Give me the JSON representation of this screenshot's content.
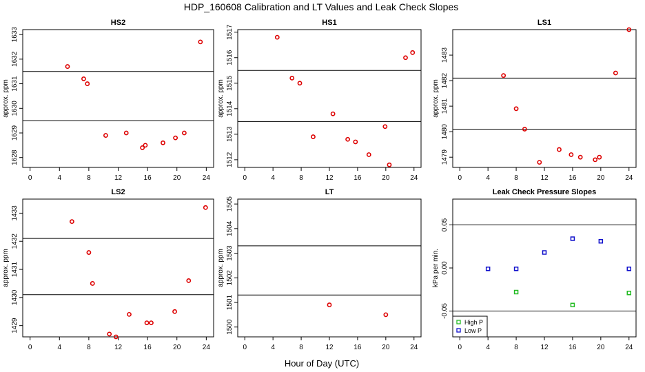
{
  "figure": {
    "title": "HDP_160608  Calibration and LT Values and Leak Check Slopes",
    "xlabel": "Hour of Day (UTC)"
  },
  "chart_data": [
    {
      "type": "scatter",
      "title": "HS2",
      "xlabel": "",
      "ylabel": "approx. ppm",
      "xlim": [
        -1,
        25
      ],
      "ylim": [
        1627.6,
        1633.2
      ],
      "xticks": [
        0,
        4,
        8,
        12,
        16,
        20,
        24
      ],
      "yticks": [
        1628,
        1629,
        1630,
        1631,
        1632,
        1633
      ],
      "hlines": [
        1631.5,
        1629.5
      ],
      "grid": false,
      "series": [
        {
          "color": "#dd0000",
          "marker": "circle",
          "x": [
            5.1,
            7.3,
            7.8,
            10.3,
            13.1,
            15.3,
            15.7,
            18.1,
            19.8,
            21.0,
            23.2
          ],
          "y": [
            1631.7,
            1631.2,
            1631.0,
            1628.9,
            1629.0,
            1628.4,
            1628.5,
            1628.6,
            1628.8,
            1629.0,
            1632.7
          ]
        }
      ]
    },
    {
      "type": "scatter",
      "title": "HS1",
      "xlabel": "",
      "ylabel": "approx. ppm",
      "xlim": [
        -1,
        25
      ],
      "ylim": [
        1511.7,
        1517.1
      ],
      "xticks": [
        0,
        4,
        8,
        12,
        16,
        20,
        24
      ],
      "yticks": [
        1512,
        1513,
        1514,
        1515,
        1516,
        1517
      ],
      "hlines": [
        1515.5,
        1513.5
      ],
      "grid": false,
      "series": [
        {
          "color": "#dd0000",
          "marker": "circle",
          "x": [
            4.6,
            6.7,
            7.8,
            9.7,
            12.5,
            14.6,
            15.7,
            17.6,
            19.9,
            20.5,
            22.8,
            23.8
          ],
          "y": [
            1516.8,
            1515.2,
            1515.0,
            1512.9,
            1513.8,
            1512.8,
            1512.7,
            1512.2,
            1513.3,
            1511.8,
            1516.0,
            1516.2
          ]
        }
      ]
    },
    {
      "type": "scatter",
      "title": "LS1",
      "xlabel": "",
      "ylabel": "approx. ppm",
      "xlim": [
        -1,
        25
      ],
      "ylim": [
        1478.6,
        1484.0
      ],
      "xticks": [
        0,
        4,
        8,
        12,
        16,
        20,
        24
      ],
      "yticks": [
        1479,
        1480,
        1481,
        1482,
        1483
      ],
      "hlines": [
        1482.1,
        1480.1
      ],
      "grid": false,
      "series": [
        {
          "color": "#dd0000",
          "marker": "circle",
          "x": [
            6.2,
            8.0,
            9.2,
            11.3,
            14.1,
            15.8,
            17.1,
            19.2,
            19.8,
            22.1,
            24.0
          ],
          "y": [
            1482.2,
            1480.9,
            1480.1,
            1478.8,
            1479.3,
            1479.1,
            1479.0,
            1478.9,
            1479.0,
            1482.3,
            1484.0
          ]
        }
      ]
    },
    {
      "type": "scatter",
      "title": "LS2",
      "xlabel": "",
      "ylabel": "approx. ppm",
      "xlim": [
        -1,
        25
      ],
      "ylim": [
        1428.6,
        1433.5
      ],
      "xticks": [
        0,
        4,
        8,
        12,
        16,
        20,
        24
      ],
      "yticks": [
        1429,
        1430,
        1431,
        1432,
        1433
      ],
      "hlines": [
        1432.1,
        1430.1
      ],
      "grid": false,
      "series": [
        {
          "color": "#dd0000",
          "marker": "circle",
          "x": [
            5.7,
            8.0,
            8.5,
            10.8,
            11.7,
            13.5,
            15.9,
            16.5,
            19.7,
            21.6,
            23.9
          ],
          "y": [
            1432.7,
            1431.6,
            1430.5,
            1428.7,
            1428.6,
            1429.4,
            1429.1,
            1429.1,
            1429.5,
            1430.6,
            1433.2
          ]
        }
      ]
    },
    {
      "type": "scatter",
      "title": "LT",
      "xlabel": "",
      "ylabel": "approx. ppm",
      "xlim": [
        -1,
        25
      ],
      "ylim": [
        1499.6,
        1505.2
      ],
      "xticks": [
        0,
        4,
        8,
        12,
        16,
        20,
        24
      ],
      "yticks": [
        1500,
        1501,
        1502,
        1503,
        1504,
        1505
      ],
      "hlines": [
        1503.3,
        1501.3
      ],
      "grid": false,
      "series": [
        {
          "color": "#dd0000",
          "marker": "circle",
          "x": [
            12.0,
            20.0
          ],
          "y": [
            1500.9,
            1500.5
          ]
        }
      ]
    },
    {
      "type": "scatter",
      "title": "Leak Check Pressure Slopes",
      "xlabel": "",
      "ylabel": "kPa per min.",
      "xlim": [
        -1,
        25
      ],
      "ylim": [
        -0.08,
        0.08
      ],
      "xticks": [
        0,
        4,
        8,
        12,
        16,
        20,
        24
      ],
      "yticks": [
        "-0.05",
        "0.00",
        "0.05"
      ],
      "hlines": [
        0.05,
        -0.05
      ],
      "grid": false,
      "legend": "bottom-left",
      "series": [
        {
          "name": "High P",
          "color": "#22bb22",
          "marker": "square",
          "x": [
            8,
            16,
            24
          ],
          "y": [
            -0.028,
            -0.043,
            -0.029
          ]
        },
        {
          "name": "Low P",
          "color": "#1010cc",
          "marker": "square",
          "x": [
            4,
            8,
            12,
            16,
            20,
            24
          ],
          "y": [
            -0.001,
            -0.001,
            0.018,
            0.034,
            0.031,
            -0.001
          ]
        }
      ]
    }
  ]
}
